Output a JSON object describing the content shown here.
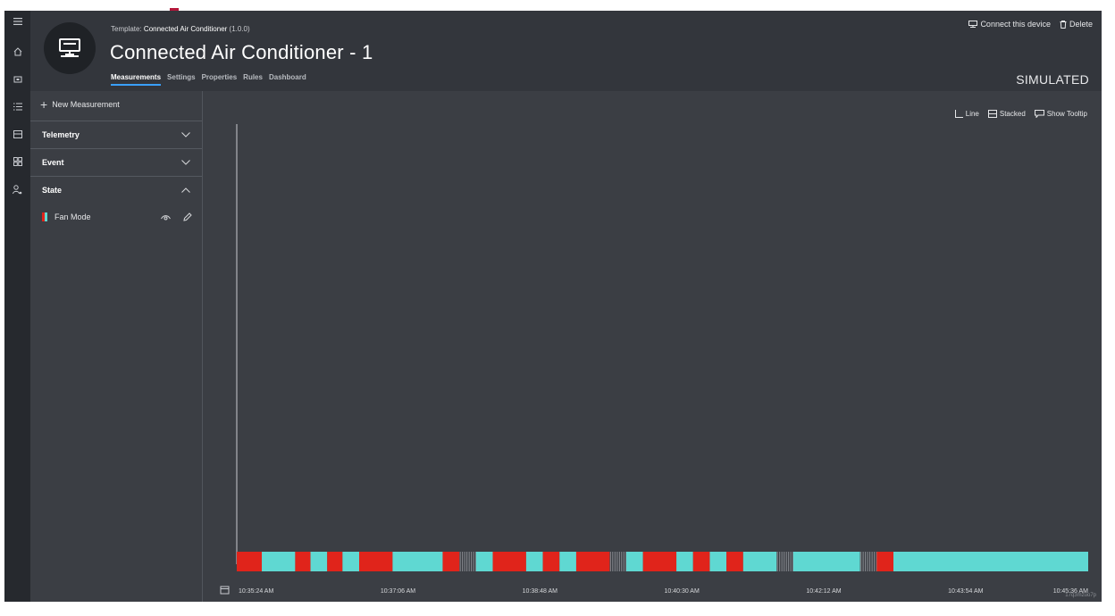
{
  "left_rail": {
    "icons": [
      "menu-icon",
      "home-icon",
      "device-icon",
      "rules-list-icon",
      "analytics-icon",
      "grid-icon",
      "user-admin-icon"
    ]
  },
  "header": {
    "template_prefix": "Template:",
    "template_name": "Connected Air Conditioner",
    "template_version": "(1.0.0)",
    "device_title": "Connected Air Conditioner - 1",
    "tabs": [
      {
        "label": "Measurements",
        "active": true
      },
      {
        "label": "Settings",
        "active": false
      },
      {
        "label": "Properties",
        "active": false
      },
      {
        "label": "Rules",
        "active": false
      },
      {
        "label": "Dashboard",
        "active": false
      }
    ],
    "actions": {
      "connect_label": "Connect this device",
      "delete_label": "Delete"
    },
    "status_label": "SIMULATED"
  },
  "sidebar": {
    "new_measurement_label": "New Measurement",
    "sections": [
      {
        "label": "Telemetry",
        "expanded": false
      },
      {
        "label": "Event",
        "expanded": false
      },
      {
        "label": "State",
        "expanded": true
      }
    ],
    "state_items": [
      {
        "label": "Fan Mode",
        "colors": [
          "#e0241b",
          "#5fd8d2"
        ]
      }
    ]
  },
  "chart_controls": {
    "line_label": "Line",
    "stacked_label": "Stacked",
    "tooltip_label": "Show Tooltip"
  },
  "footer_id": "17q3mzuo7p",
  "colors": {
    "state_red": "#e0241b",
    "state_cyan": "#5fd8d2",
    "state_gap": "#8a8d93",
    "accent_blue": "#3aa0ff",
    "brand_red": "#b4173a"
  },
  "chart_data": {
    "type": "state-timeline",
    "x_start": "10:35:24 AM",
    "x_end": "10:45:36 AM",
    "tick_labels": [
      "10:35:24 AM",
      "10:37:06 AM",
      "10:38:48 AM",
      "10:40:30 AM",
      "10:42:12 AM",
      "10:43:54 AM",
      "10:45:36 AM"
    ],
    "series": [
      {
        "name": "Fan Mode",
        "segments": [
          {
            "start": "10:35:24",
            "end": "10:35:42",
            "state": "red"
          },
          {
            "start": "10:35:42",
            "end": "10:36:06",
            "state": "cyan"
          },
          {
            "start": "10:36:06",
            "end": "10:36:17",
            "state": "red"
          },
          {
            "start": "10:36:17",
            "end": "10:36:29",
            "state": "cyan"
          },
          {
            "start": "10:36:29",
            "end": "10:36:40",
            "state": "red"
          },
          {
            "start": "10:36:40",
            "end": "10:36:52",
            "state": "cyan"
          },
          {
            "start": "10:36:52",
            "end": "10:37:16",
            "state": "red"
          },
          {
            "start": "10:37:16",
            "end": "10:37:52",
            "state": "cyan"
          },
          {
            "start": "10:37:52",
            "end": "10:38:04",
            "state": "red"
          },
          {
            "start": "10:38:04",
            "end": "10:38:16",
            "state": "gap"
          },
          {
            "start": "10:38:16",
            "end": "10:38:28",
            "state": "cyan"
          },
          {
            "start": "10:38:28",
            "end": "10:38:52",
            "state": "red"
          },
          {
            "start": "10:38:52",
            "end": "10:39:04",
            "state": "cyan"
          },
          {
            "start": "10:39:04",
            "end": "10:39:16",
            "state": "red"
          },
          {
            "start": "10:39:16",
            "end": "10:39:28",
            "state": "cyan"
          },
          {
            "start": "10:39:28",
            "end": "10:39:52",
            "state": "red"
          },
          {
            "start": "10:39:52",
            "end": "10:40:04",
            "state": "gap"
          },
          {
            "start": "10:40:04",
            "end": "10:40:16",
            "state": "cyan"
          },
          {
            "start": "10:40:16",
            "end": "10:40:40",
            "state": "red"
          },
          {
            "start": "10:40:40",
            "end": "10:40:52",
            "state": "cyan"
          },
          {
            "start": "10:40:52",
            "end": "10:41:04",
            "state": "red"
          },
          {
            "start": "10:41:04",
            "end": "10:41:16",
            "state": "cyan"
          },
          {
            "start": "10:41:16",
            "end": "10:41:28",
            "state": "red"
          },
          {
            "start": "10:41:28",
            "end": "10:41:52",
            "state": "cyan"
          },
          {
            "start": "10:41:52",
            "end": "10:42:04",
            "state": "gap"
          },
          {
            "start": "10:42:04",
            "end": "10:42:52",
            "state": "cyan"
          },
          {
            "start": "10:42:52",
            "end": "10:43:04",
            "state": "gap"
          },
          {
            "start": "10:43:04",
            "end": "10:43:16",
            "state": "red"
          },
          {
            "start": "10:43:16",
            "end": "10:45:36",
            "state": "cyan"
          }
        ]
      }
    ]
  }
}
